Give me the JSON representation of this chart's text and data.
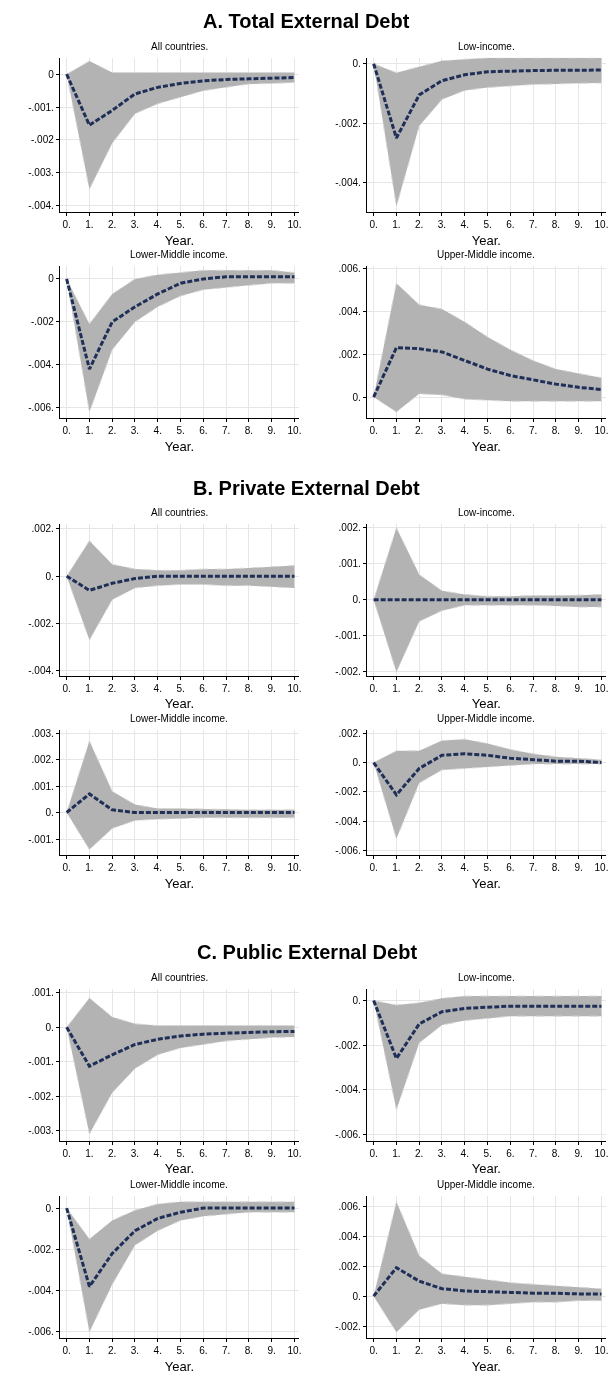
{
  "chart_data": [
    {
      "type": "line",
      "title": "All countries.",
      "annotations": [
        "A. Total External Debt"
      ],
      "xlabel": "Year.",
      "grid": true,
      "line_style": "dashed",
      "x": [
        0,
        1,
        2,
        3,
        4,
        5,
        6,
        7,
        8,
        9,
        10
      ],
      "xlim": [
        -0.3,
        10.2
      ],
      "xticks": [
        {
          "value": 0,
          "label": "0."
        },
        {
          "value": 1,
          "label": "1."
        },
        {
          "value": 2,
          "label": "2."
        },
        {
          "value": 3,
          "label": "3."
        },
        {
          "value": 4,
          "label": "4."
        },
        {
          "value": 5,
          "label": "5."
        },
        {
          "value": 6,
          "label": "6."
        },
        {
          "value": 7,
          "label": "7."
        },
        {
          "value": 8,
          "label": "8."
        },
        {
          "value": 9,
          "label": "9."
        },
        {
          "value": 10,
          "label": "10."
        }
      ],
      "ylim": [
        -0.0042,
        0.0005
      ],
      "yticks": [
        {
          "value": 0,
          "label": "0"
        },
        {
          "value": -0.001,
          "label": "-.001."
        },
        {
          "value": -0.002,
          "label": "-.002"
        },
        {
          "value": -0.003,
          "label": "-.003."
        },
        {
          "value": -0.004,
          "label": "-.004."
        }
      ],
      "series": [
        {
          "color": "#1f2f57",
          "values": [
            0,
            -0.00155,
            -0.0011,
            -0.0006,
            -0.0004,
            -0.00028,
            -0.0002,
            -0.00016,
            -0.00014,
            -0.00012,
            -0.0001
          ],
          "upper": [
            0,
            0.0004,
            5e-05,
            5e-05,
            5e-05,
            5e-05,
            5e-05,
            5e-05,
            5e-05,
            5e-05,
            5e-05
          ],
          "lower": [
            0,
            -0.0035,
            -0.0021,
            -0.0012,
            -0.0009,
            -0.0007,
            -0.0005,
            -0.0004,
            -0.0003,
            -0.00028,
            -0.00025
          ]
        }
      ]
    },
    {
      "type": "line",
      "title": "Low-income.",
      "xlabel": "Year.",
      "grid": true,
      "line_style": "dashed",
      "x": [
        0,
        1,
        2,
        3,
        4,
        5,
        6,
        7,
        8,
        9,
        10
      ],
      "xlim": [
        -0.3,
        10.2
      ],
      "xticks": [
        {
          "value": 0,
          "label": "0."
        },
        {
          "value": 1,
          "label": "1."
        },
        {
          "value": 2,
          "label": "2."
        },
        {
          "value": 3,
          "label": "3."
        },
        {
          "value": 4,
          "label": "4."
        },
        {
          "value": 5,
          "label": "5."
        },
        {
          "value": 6,
          "label": "6."
        },
        {
          "value": 7,
          "label": "7."
        },
        {
          "value": 8,
          "label": "8."
        },
        {
          "value": 9,
          "label": "9."
        },
        {
          "value": 10,
          "label": "10."
        }
      ],
      "ylim": [
        -0.005,
        0.0002
      ],
      "yticks": [
        {
          "value": 0,
          "label": "0."
        },
        {
          "value": -0.002,
          "label": "-.002."
        },
        {
          "value": -0.004,
          "label": "-.004."
        }
      ],
      "series": [
        {
          "color": "#1f2f57",
          "values": [
            0,
            -0.0025,
            -0.00105,
            -0.00057,
            -0.00037,
            -0.00027,
            -0.00025,
            -0.00023,
            -0.00022,
            -0.00022,
            -0.00021
          ],
          "upper": [
            0,
            -0.0003,
            -0.0001,
            0.0001,
            0.00015,
            0.0002,
            0.0002,
            0.0002,
            0.0002,
            0.0002,
            0.0002
          ],
          "lower": [
            0,
            -0.0048,
            -0.0021,
            -0.0012,
            -0.0009,
            -0.0008,
            -0.00075,
            -0.0007,
            -0.00068,
            -0.00066,
            -0.00065
          ]
        }
      ]
    },
    {
      "type": "line",
      "title": "Lower-Middle income.",
      "xlabel": "Year.",
      "grid": true,
      "line_style": "dashed",
      "x": [
        0,
        1,
        2,
        3,
        4,
        5,
        6,
        7,
        8,
        9,
        10
      ],
      "xlim": [
        -0.3,
        10.2
      ],
      "xticks": [
        {
          "value": 0,
          "label": "0."
        },
        {
          "value": 1,
          "label": "1."
        },
        {
          "value": 2,
          "label": "2."
        },
        {
          "value": 3,
          "label": "3."
        },
        {
          "value": 4,
          "label": "4."
        },
        {
          "value": 5,
          "label": "5."
        },
        {
          "value": 6,
          "label": "6."
        },
        {
          "value": 7,
          "label": "7."
        },
        {
          "value": 8,
          "label": "8."
        },
        {
          "value": 9,
          "label": "9."
        },
        {
          "value": 10,
          "label": "10."
        }
      ],
      "ylim": [
        -0.0065,
        0.0006
      ],
      "yticks": [
        {
          "value": 0,
          "label": "0"
        },
        {
          "value": -0.002,
          "label": "-.002"
        },
        {
          "value": -0.004,
          "label": "-.004."
        },
        {
          "value": -0.006,
          "label": "-.006."
        }
      ],
      "series": [
        {
          "color": "#1f2f57",
          "values": [
            0,
            -0.0042,
            -0.002,
            -0.0013,
            -0.0007,
            -0.0002,
            0,
            0.0001,
            0.0001,
            0.0001,
            0.0001
          ],
          "upper": [
            0,
            -0.0021,
            -0.0007,
            0,
            0.0002,
            0.0003,
            0.0004,
            0.0004,
            0.0004,
            0.0004,
            0.0003
          ],
          "lower": [
            0,
            -0.0062,
            -0.0033,
            -0.002,
            -0.0013,
            -0.0008,
            -0.0005,
            -0.0004,
            -0.0003,
            -0.0002,
            -0.0002
          ]
        }
      ]
    },
    {
      "type": "line",
      "title": "Upper-Middle income.",
      "xlabel": "Year.",
      "grid": true,
      "line_style": "dashed",
      "x": [
        0,
        1,
        2,
        3,
        4,
        5,
        6,
        7,
        8,
        9,
        10
      ],
      "xlim": [
        -0.3,
        10.2
      ],
      "xticks": [
        {
          "value": 0,
          "label": "0."
        },
        {
          "value": 1,
          "label": "1."
        },
        {
          "value": 2,
          "label": "2."
        },
        {
          "value": 3,
          "label": "3."
        },
        {
          "value": 4,
          "label": "4."
        },
        {
          "value": 5,
          "label": "5."
        },
        {
          "value": 6,
          "label": "6."
        },
        {
          "value": 7,
          "label": "7."
        },
        {
          "value": 8,
          "label": "8."
        },
        {
          "value": 9,
          "label": "9."
        },
        {
          "value": 10,
          "label": "10."
        }
      ],
      "ylim": [
        -0.001,
        0.0061
      ],
      "yticks": [
        {
          "value": 0,
          "label": "0."
        },
        {
          "value": 0.002,
          "label": ".002."
        },
        {
          "value": 0.004,
          "label": ".004."
        },
        {
          "value": 0.006,
          "label": ".006."
        }
      ],
      "series": [
        {
          "color": "#1f2f57",
          "values": [
            0,
            0.0023,
            0.00225,
            0.0021,
            0.0017,
            0.0013,
            0.001,
            0.0008,
            0.0006,
            0.00045,
            0.00035
          ],
          "upper": [
            0,
            0.0053,
            0.0043,
            0.0041,
            0.0035,
            0.0028,
            0.0022,
            0.0017,
            0.0013,
            0.0011,
            0.0009
          ],
          "lower": [
            0,
            -0.0007,
            0.00015,
            0.0001,
            -0.0001,
            -0.00015,
            -0.0002,
            -0.0002,
            -0.0002,
            -0.0002,
            -0.0002
          ]
        }
      ]
    },
    {
      "type": "line",
      "title": "All countries.",
      "annotations": [
        "B. Private External Debt"
      ],
      "xlabel": "Year.",
      "grid": true,
      "line_style": "dashed",
      "x": [
        0,
        1,
        2,
        3,
        4,
        5,
        6,
        7,
        8,
        9,
        10
      ],
      "xlim": [
        -0.3,
        10.2
      ],
      "xticks": [
        {
          "value": 0,
          "label": "0."
        },
        {
          "value": 1,
          "label": "1."
        },
        {
          "value": 2,
          "label": "2."
        },
        {
          "value": 3,
          "label": "3."
        },
        {
          "value": 4,
          "label": "4."
        },
        {
          "value": 5,
          "label": "5."
        },
        {
          "value": 6,
          "label": "6."
        },
        {
          "value": 7,
          "label": "7."
        },
        {
          "value": 8,
          "label": "8."
        },
        {
          "value": 9,
          "label": "9."
        },
        {
          "value": 10,
          "label": "10."
        }
      ],
      "ylim": [
        -0.0042,
        0.0022
      ],
      "yticks": [
        {
          "value": 0.002,
          "label": ".002."
        },
        {
          "value": 0,
          "label": "0."
        },
        {
          "value": -0.002,
          "label": "-.002."
        },
        {
          "value": -0.004,
          "label": "-.004."
        }
      ],
      "series": [
        {
          "color": "#1f2f57",
          "values": [
            0,
            -0.0006,
            -0.0003,
            -0.0001,
            0,
            0,
            0,
            0,
            0,
            0,
            0
          ],
          "upper": [
            0,
            0.0015,
            0.0005,
            0.0003,
            0.00025,
            0.00025,
            0.0003,
            0.0003,
            0.00035,
            0.0004,
            0.00045
          ],
          "lower": [
            0,
            -0.0027,
            -0.001,
            -0.0005,
            -0.0004,
            -0.00035,
            -0.00035,
            -0.0004,
            -0.0004,
            -0.00045,
            -0.0005
          ]
        }
      ]
    },
    {
      "type": "line",
      "title": "Low-income.",
      "xlabel": "Year.",
      "grid": true,
      "line_style": "dashed",
      "x": [
        0,
        1,
        2,
        3,
        4,
        5,
        6,
        7,
        8,
        9,
        10
      ],
      "xlim": [
        -0.3,
        10.2
      ],
      "xticks": [
        {
          "value": 0,
          "label": "0."
        },
        {
          "value": 1,
          "label": "1."
        },
        {
          "value": 2,
          "label": "2."
        },
        {
          "value": 3,
          "label": "3."
        },
        {
          "value": 4,
          "label": "4."
        },
        {
          "value": 5,
          "label": "5."
        },
        {
          "value": 6,
          "label": "6."
        },
        {
          "value": 7,
          "label": "7."
        },
        {
          "value": 8,
          "label": "8."
        },
        {
          "value": 9,
          "label": "9."
        },
        {
          "value": 10,
          "label": "10."
        }
      ],
      "ylim": [
        -0.0021,
        0.0021
      ],
      "yticks": [
        {
          "value": 0.002,
          "label": ".002."
        },
        {
          "value": 0.001,
          "label": ".001."
        },
        {
          "value": 0,
          "label": "0."
        },
        {
          "value": -0.001,
          "label": "-.001."
        },
        {
          "value": -0.002,
          "label": "-.002."
        }
      ],
      "series": [
        {
          "color": "#1f2f57",
          "values": [
            0,
            0,
            0,
            0,
            0,
            0,
            0,
            0,
            0,
            0,
            0
          ],
          "upper": [
            0,
            0.002,
            0.0007,
            0.00025,
            0.00015,
            0.0001,
            0.0001,
            0.00012,
            0.00012,
            0.00013,
            0.00015
          ],
          "lower": [
            0,
            -0.002,
            -0.0006,
            -0.0003,
            -0.00015,
            -0.00015,
            -0.00015,
            -0.00015,
            -0.00017,
            -0.0002,
            -0.0002
          ]
        }
      ]
    },
    {
      "type": "line",
      "title": "Lower-Middle income.",
      "xlabel": "Year.",
      "grid": true,
      "line_style": "dashed",
      "x": [
        0,
        1,
        2,
        3,
        4,
        5,
        6,
        7,
        8,
        9,
        10
      ],
      "xlim": [
        -0.3,
        10.2
      ],
      "xticks": [
        {
          "value": 0,
          "label": "0."
        },
        {
          "value": 1,
          "label": "1."
        },
        {
          "value": 2,
          "label": "2."
        },
        {
          "value": 3,
          "label": "3."
        },
        {
          "value": 4,
          "label": "4."
        },
        {
          "value": 5,
          "label": "5."
        },
        {
          "value": 6,
          "label": "6."
        },
        {
          "value": 7,
          "label": "7."
        },
        {
          "value": 8,
          "label": "8."
        },
        {
          "value": 9,
          "label": "9."
        },
        {
          "value": 10,
          "label": "10."
        }
      ],
      "ylim": [
        -0.0016,
        0.0031
      ],
      "yticks": [
        {
          "value": 0.003,
          "label": ".003."
        },
        {
          "value": 0.002,
          "label": ".002."
        },
        {
          "value": 0.001,
          "label": ".001."
        },
        {
          "value": 0,
          "label": "0."
        },
        {
          "value": -0.001,
          "label": "-.001."
        }
      ],
      "series": [
        {
          "color": "#1f2f57",
          "values": [
            0,
            0.0007,
            0.0001,
            0,
            0,
            0,
            0,
            0,
            0,
            0,
            0
          ],
          "upper": [
            0,
            0.0027,
            0.0008,
            0.0003,
            0.00015,
            0.00015,
            0.00013,
            0.00012,
            0.0001,
            0.0001,
            0.0001
          ],
          "lower": [
            0,
            -0.0014,
            -0.0006,
            -0.0003,
            -0.00025,
            -0.00023,
            -0.0002,
            -0.0002,
            -0.0002,
            -0.0002,
            -0.0002
          ]
        }
      ]
    },
    {
      "type": "line",
      "title": "Upper-Middle income.",
      "xlabel": "Year.",
      "grid": true,
      "line_style": "dashed",
      "x": [
        0,
        1,
        2,
        3,
        4,
        5,
        6,
        7,
        8,
        9,
        10
      ],
      "xlim": [
        -0.3,
        10.2
      ],
      "xticks": [
        {
          "value": 0,
          "label": "0."
        },
        {
          "value": 1,
          "label": "1."
        },
        {
          "value": 2,
          "label": "2."
        },
        {
          "value": 3,
          "label": "3."
        },
        {
          "value": 4,
          "label": "4."
        },
        {
          "value": 5,
          "label": "5."
        },
        {
          "value": 6,
          "label": "6."
        },
        {
          "value": 7,
          "label": "7."
        },
        {
          "value": 8,
          "label": "8."
        },
        {
          "value": 9,
          "label": "9."
        },
        {
          "value": 10,
          "label": "10."
        }
      ],
      "ylim": [
        -0.0063,
        0.0022
      ],
      "yticks": [
        {
          "value": 0.002,
          "label": ".002."
        },
        {
          "value": 0,
          "label": "0."
        },
        {
          "value": -0.002,
          "label": "-.002."
        },
        {
          "value": -0.004,
          "label": "-.004."
        },
        {
          "value": -0.006,
          "label": "-.006."
        }
      ],
      "series": [
        {
          "color": "#1f2f57",
          "values": [
            0,
            -0.0022,
            -0.0004,
            0.0005,
            0.0006,
            0.0005,
            0.0003,
            0.0002,
            0.0001,
            0.0001,
            0
          ],
          "upper": [
            0,
            0.0008,
            0.0008,
            0.0015,
            0.0016,
            0.0013,
            0.0009,
            0.0006,
            0.0004,
            0.0003,
            0.0002
          ],
          "lower": [
            0,
            -0.0052,
            -0.0014,
            -0.0005,
            -0.0004,
            -0.0003,
            -0.0002,
            -0.0001,
            -0.0001,
            -0.0001,
            -0.0001
          ]
        }
      ]
    },
    {
      "type": "line",
      "title": "All countries.",
      "annotations": [
        "C. Public External Debt"
      ],
      "xlabel": "Year.",
      "grid": true,
      "line_style": "dashed",
      "x": [
        0,
        1,
        2,
        3,
        4,
        5,
        6,
        7,
        8,
        9,
        10
      ],
      "xlim": [
        -0.3,
        10.2
      ],
      "xticks": [
        {
          "value": 0,
          "label": "0."
        },
        {
          "value": 1,
          "label": "1."
        },
        {
          "value": 2,
          "label": "2."
        },
        {
          "value": 3,
          "label": "3."
        },
        {
          "value": 4,
          "label": "4."
        },
        {
          "value": 5,
          "label": "5."
        },
        {
          "value": 6,
          "label": "6."
        },
        {
          "value": 7,
          "label": "7."
        },
        {
          "value": 8,
          "label": "8."
        },
        {
          "value": 9,
          "label": "9."
        },
        {
          "value": 10,
          "label": "10."
        }
      ],
      "ylim": [
        -0.0033,
        0.0011
      ],
      "yticks": [
        {
          "value": 0.001,
          "label": ".001."
        },
        {
          "value": 0,
          "label": "0."
        },
        {
          "value": -0.001,
          "label": "-.001."
        },
        {
          "value": -0.002,
          "label": "-.002."
        },
        {
          "value": -0.003,
          "label": "-.003."
        }
      ],
      "series": [
        {
          "color": "#1f2f57",
          "values": [
            0,
            -0.00113,
            -0.0008,
            -0.0005,
            -0.00035,
            -0.00025,
            -0.0002,
            -0.00017,
            -0.00015,
            -0.00013,
            -0.00012
          ],
          "upper": [
            0,
            0.00085,
            0.0003,
            0.0001,
            5e-05,
            5e-05,
            5e-05,
            5e-05,
            5e-05,
            5e-05,
            5e-05
          ],
          "lower": [
            0,
            -0.0031,
            -0.0019,
            -0.0012,
            -0.0008,
            -0.0006,
            -0.0005,
            -0.0004,
            -0.00035,
            -0.0003,
            -0.00028
          ]
        }
      ]
    },
    {
      "type": "line",
      "title": "Low-income.",
      "xlabel": "Year.",
      "grid": true,
      "line_style": "dashed",
      "x": [
        0,
        1,
        2,
        3,
        4,
        5,
        6,
        7,
        8,
        9,
        10
      ],
      "xlim": [
        -0.3,
        10.2
      ],
      "xticks": [
        {
          "value": 0,
          "label": "0."
        },
        {
          "value": 1,
          "label": "1."
        },
        {
          "value": 2,
          "label": "2."
        },
        {
          "value": 3,
          "label": "3."
        },
        {
          "value": 4,
          "label": "4."
        },
        {
          "value": 5,
          "label": "5."
        },
        {
          "value": 6,
          "label": "6."
        },
        {
          "value": 7,
          "label": "7."
        },
        {
          "value": 8,
          "label": "8."
        },
        {
          "value": 9,
          "label": "9."
        },
        {
          "value": 10,
          "label": "10."
        }
      ],
      "ylim": [
        -0.0063,
        0.0005
      ],
      "yticks": [
        {
          "value": 0,
          "label": "0."
        },
        {
          "value": -0.002,
          "label": "-.002."
        },
        {
          "value": -0.004,
          "label": "-.004."
        },
        {
          "value": -0.006,
          "label": "-.006."
        }
      ],
      "series": [
        {
          "color": "#1f2f57",
          "values": [
            0,
            -0.0026,
            -0.00105,
            -0.0005,
            -0.00035,
            -0.0003,
            -0.00025,
            -0.00025,
            -0.00025,
            -0.00025,
            -0.00025
          ],
          "upper": [
            0,
            -0.0002,
            -0.0001,
            0.0001,
            0.0002,
            0.0002,
            0.0002,
            0.0002,
            0.0002,
            0.0002,
            0.0002
          ],
          "lower": [
            0,
            -0.0049,
            -0.0019,
            -0.0011,
            -0.0009,
            -0.0008,
            -0.0007,
            -0.0007,
            -0.0007,
            -0.0007,
            -0.0007
          ]
        }
      ]
    },
    {
      "type": "line",
      "title": "Lower-Middle income.",
      "xlabel": "Year.",
      "grid": true,
      "line_style": "dashed",
      "x": [
        0,
        1,
        2,
        3,
        4,
        5,
        6,
        7,
        8,
        9,
        10
      ],
      "xlim": [
        -0.3,
        10.2
      ],
      "xticks": [
        {
          "value": 0,
          "label": "0."
        },
        {
          "value": 1,
          "label": "1."
        },
        {
          "value": 2,
          "label": "2."
        },
        {
          "value": 3,
          "label": "3."
        },
        {
          "value": 4,
          "label": "4."
        },
        {
          "value": 5,
          "label": "5."
        },
        {
          "value": 6,
          "label": "6."
        },
        {
          "value": 7,
          "label": "7."
        },
        {
          "value": 8,
          "label": "8."
        },
        {
          "value": 9,
          "label": "9."
        },
        {
          "value": 10,
          "label": "10."
        }
      ],
      "ylim": [
        -0.0063,
        0.0006
      ],
      "yticks": [
        {
          "value": 0,
          "label": "0."
        },
        {
          "value": -0.002,
          "label": "-.002."
        },
        {
          "value": -0.004,
          "label": "-.004."
        },
        {
          "value": -0.006,
          "label": "-.006."
        }
      ],
      "series": [
        {
          "color": "#1f2f57",
          "values": [
            0,
            -0.0038,
            -0.0022,
            -0.0011,
            -0.0005,
            -0.0002,
            0,
            0,
            0,
            0,
            0
          ],
          "upper": [
            0,
            -0.0015,
            -0.0006,
            -0.0001,
            0.0002,
            0.0003,
            0.0003,
            0.0003,
            0.0003,
            0.0003,
            0.0003
          ],
          "lower": [
            0,
            -0.006,
            -0.0037,
            -0.0018,
            -0.0011,
            -0.0006,
            -0.0004,
            -0.0003,
            -0.0002,
            -0.0002,
            -0.0002
          ]
        }
      ]
    },
    {
      "type": "line",
      "title": "Upper-Middle income.",
      "xlabel": "Year.",
      "grid": true,
      "line_style": "dashed",
      "x": [
        0,
        1,
        2,
        3,
        4,
        5,
        6,
        7,
        8,
        9,
        10
      ],
      "xlim": [
        -0.3,
        10.2
      ],
      "xticks": [
        {
          "value": 0,
          "label": "0."
        },
        {
          "value": 1,
          "label": "1."
        },
        {
          "value": 2,
          "label": "2."
        },
        {
          "value": 3,
          "label": "3."
        },
        {
          "value": 4,
          "label": "4."
        },
        {
          "value": 5,
          "label": "5."
        },
        {
          "value": 6,
          "label": "6."
        },
        {
          "value": 7,
          "label": "7."
        },
        {
          "value": 8,
          "label": "8."
        },
        {
          "value": 9,
          "label": "9."
        },
        {
          "value": 10,
          "label": "10."
        }
      ],
      "ylim": [
        -0.0028,
        0.0067
      ],
      "yticks": [
        {
          "value": 0.006,
          "label": ".006."
        },
        {
          "value": 0.004,
          "label": ".004."
        },
        {
          "value": 0.002,
          "label": ".002."
        },
        {
          "value": 0,
          "label": "0."
        },
        {
          "value": -0.002,
          "label": "-.002."
        }
      ],
      "series": [
        {
          "color": "#1f2f57",
          "values": [
            0,
            0.0019,
            0.001,
            0.0005,
            0.00035,
            0.0003,
            0.00025,
            0.0002,
            0.0002,
            0.00015,
            0.00015
          ],
          "upper": [
            0,
            0.0063,
            0.0027,
            0.0015,
            0.0013,
            0.0011,
            0.0009,
            0.0008,
            0.0007,
            0.0006,
            0.0005
          ],
          "lower": [
            0,
            -0.0024,
            -0.0009,
            -0.0005,
            -0.0006,
            -0.0006,
            -0.0005,
            -0.0004,
            -0.0004,
            -0.0003,
            -0.0003
          ]
        }
      ]
    }
  ]
}
